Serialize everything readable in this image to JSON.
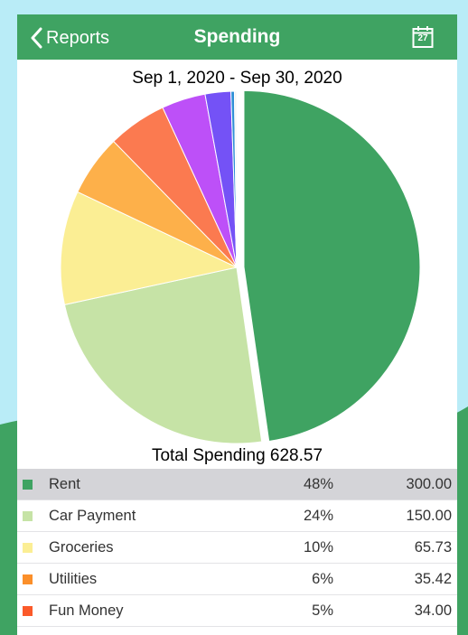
{
  "navbar": {
    "back_label": "Reports",
    "title": "Spending",
    "calendar_day": "27"
  },
  "colors": {
    "nav_green": "#3fa362",
    "sky": "#b9ecf7"
  },
  "report": {
    "date_range": "Sep 1, 2020 - Sep 30, 2020",
    "total_label": "Total Spending 628.57"
  },
  "chart_data": {
    "type": "pie",
    "title": "",
    "slices": [
      {
        "label": "Rent",
        "value": 300.0,
        "color": "#3fa362",
        "exploded": true
      },
      {
        "label": "Car Payment",
        "value": 150.0,
        "color": "#c6e3a6"
      },
      {
        "label": "Groceries",
        "value": 65.73,
        "color": "#fbee94"
      },
      {
        "label": "Utilities",
        "value": 35.42,
        "color": "#fdb04a"
      },
      {
        "label": "Fun Money",
        "value": 34.0,
        "color": "#fb7a50"
      },
      {
        "label": "",
        "value": 25.3,
        "color": "#bd50f8"
      },
      {
        "label": "",
        "value": 14.8,
        "color": "#7452f6"
      },
      {
        "label": "",
        "value": 2.0,
        "color": "#2f8fd6"
      },
      {
        "label": "",
        "value": 1.3,
        "color": "#f3f3f3"
      }
    ]
  },
  "table": {
    "rows": [
      {
        "name": "Rent",
        "pct": "48%",
        "amount": "300.00",
        "color": "#3fa362"
      },
      {
        "name": "Car Payment",
        "pct": "24%",
        "amount": "150.00",
        "color": "#c6e3a6"
      },
      {
        "name": "Groceries",
        "pct": "10%",
        "amount": "65.73",
        "color": "#fbee94"
      },
      {
        "name": "Utilities",
        "pct": "6%",
        "amount": "35.42",
        "color": "#fb8f2a"
      },
      {
        "name": "Fun Money",
        "pct": "5%",
        "amount": "34.00",
        "color": "#fb5a2a"
      }
    ]
  }
}
